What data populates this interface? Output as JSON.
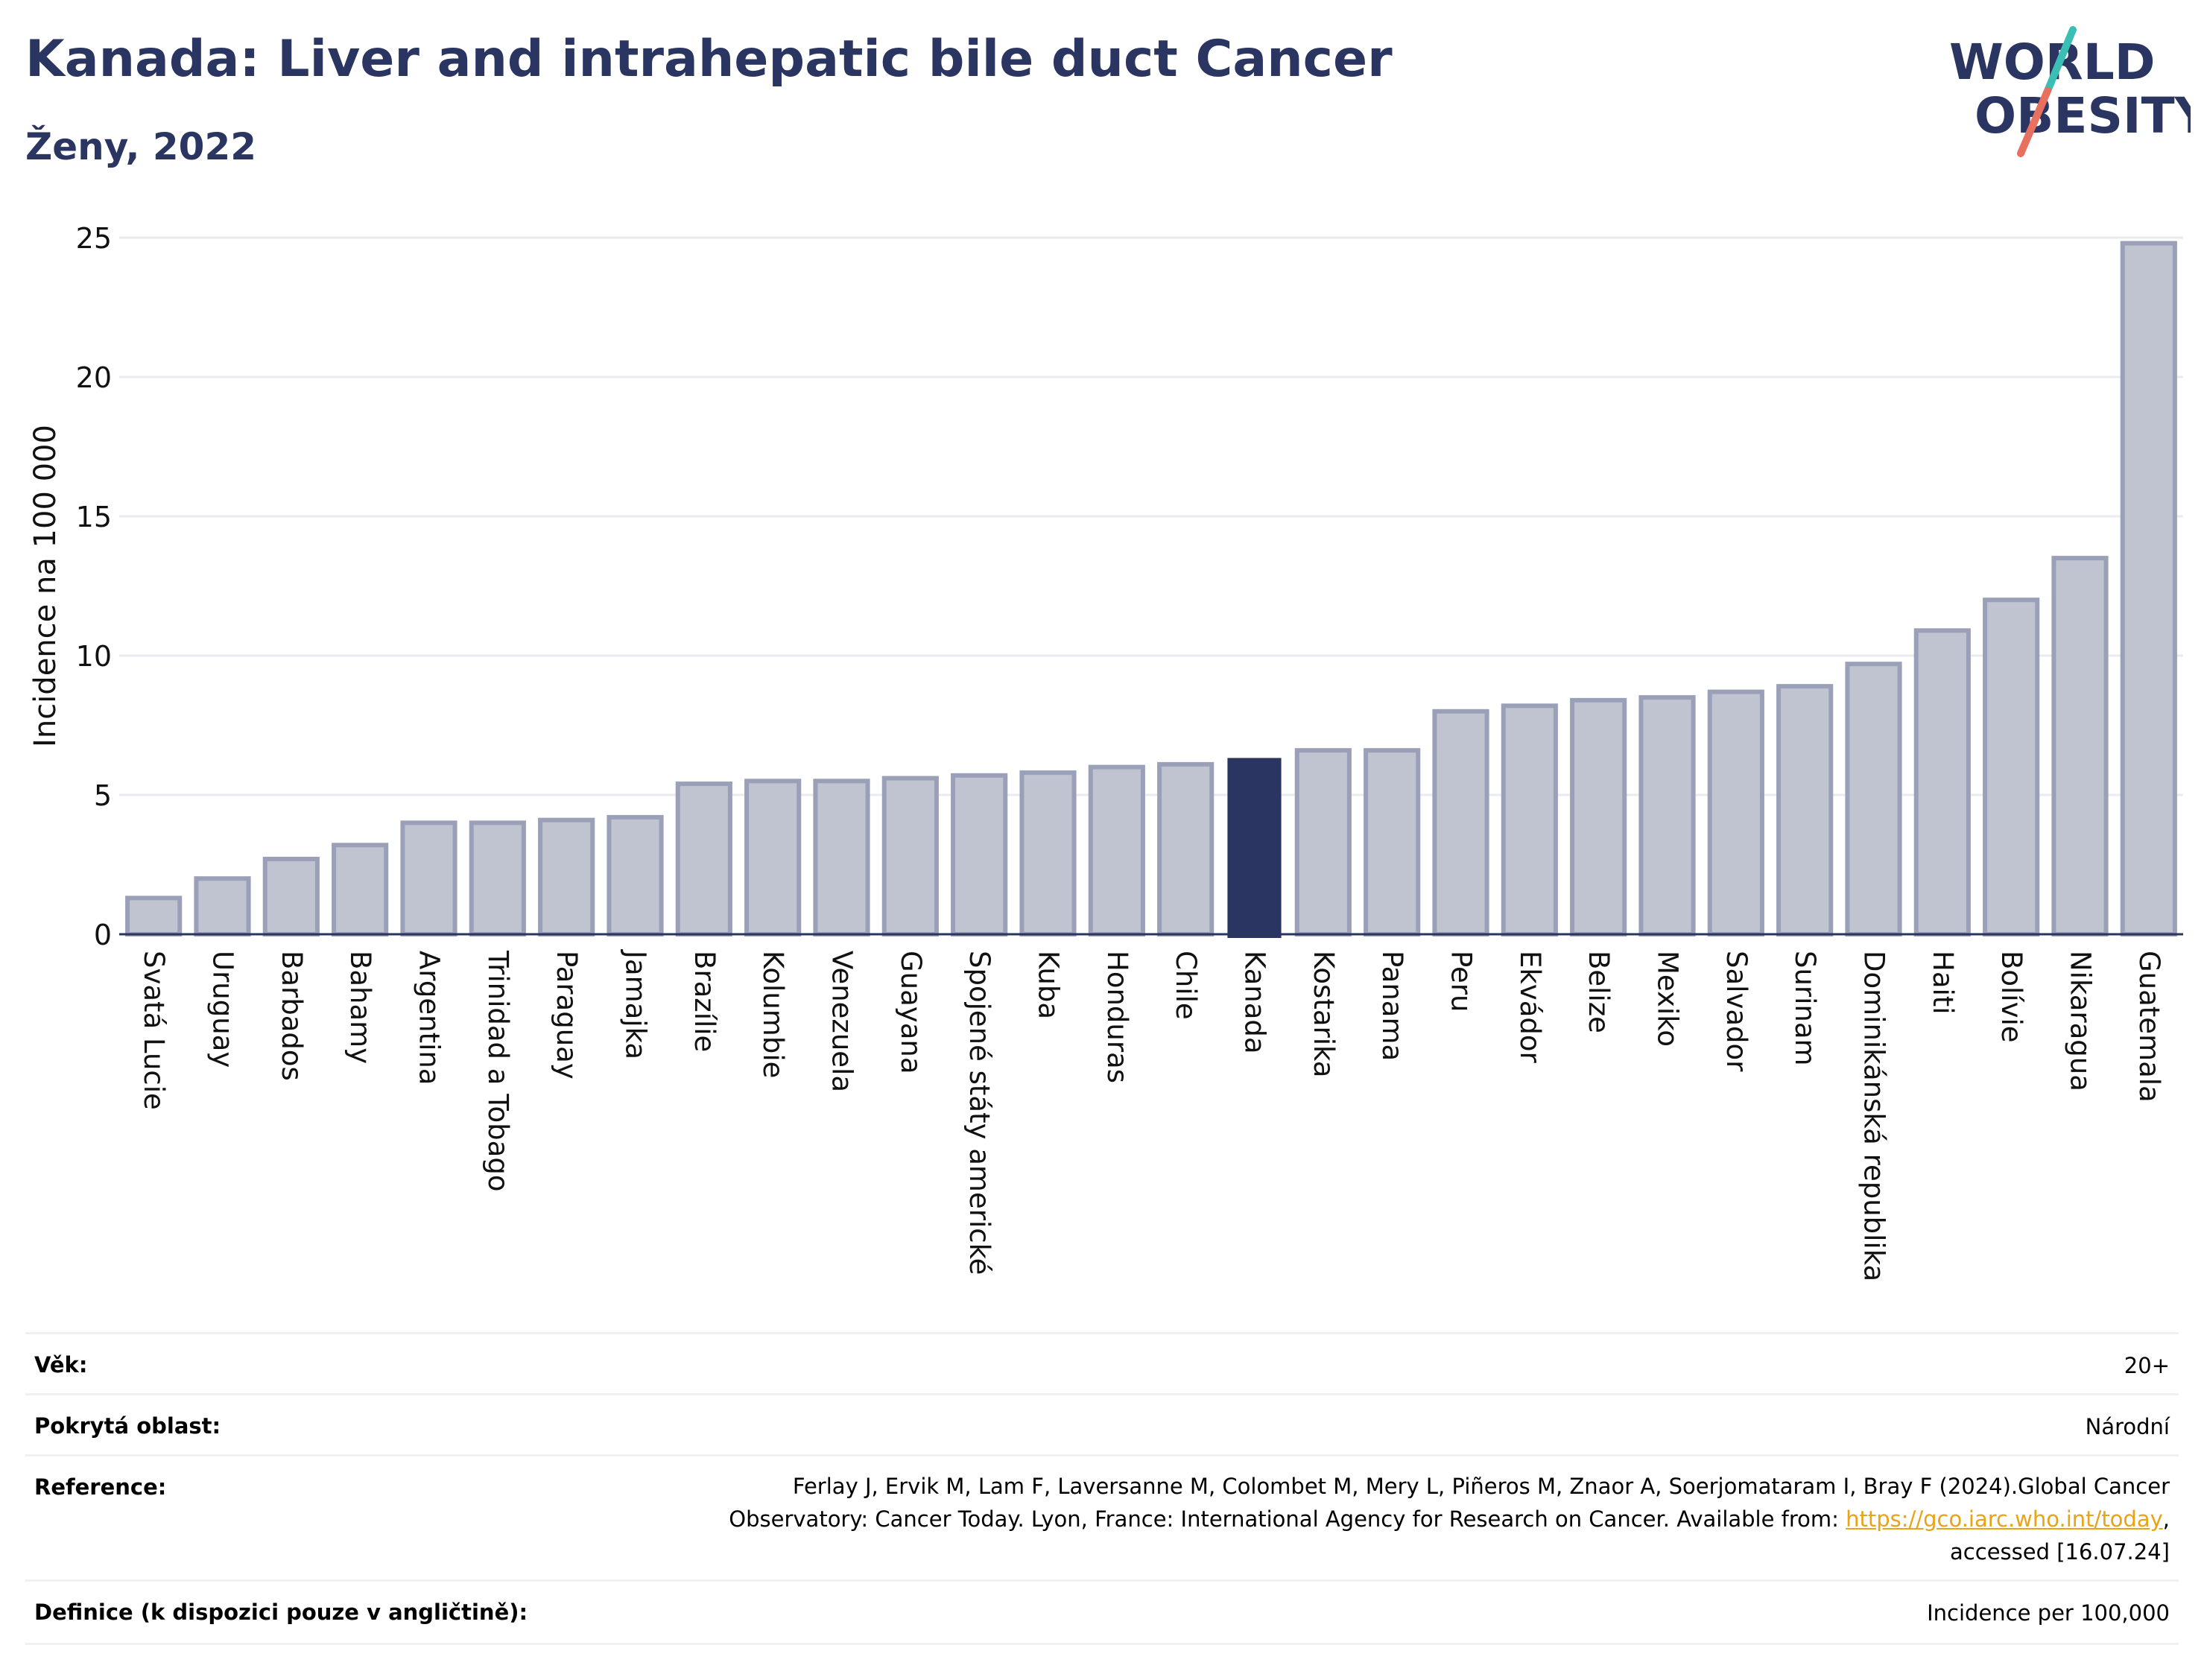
{
  "header": {
    "title": "Kanada: Liver and intrahepatic bile duct Cancer",
    "subtitle": "Ženy, 2022",
    "logo_line1": "WORLD",
    "logo_line2": "OBESITY"
  },
  "colors": {
    "bar": "#c0c4d1",
    "bar_stroke": "#9aa0b8",
    "highlight": "#2a3561",
    "title": "#2a3561",
    "logo_teal": "#3bbfb5",
    "logo_coral": "#e8705f"
  },
  "chart_data": {
    "type": "bar",
    "ylabel": "Incidence na 100 000",
    "ylim": [
      0,
      25
    ],
    "yticks": [
      0,
      5,
      10,
      15,
      20,
      25
    ],
    "grid": true,
    "highlight": "Kanada",
    "categories": [
      "Svatá Lucie",
      "Uruguay",
      "Barbados",
      "Bahamy",
      "Argentina",
      "Trinidad a Tobago",
      "Paraguay",
      "Jamajka",
      "Brazílie",
      "Kolumbie",
      "Venezuela",
      "Guayana",
      "Spojené státy americké",
      "Kuba",
      "Honduras",
      "Chile",
      "Kanada",
      "Kostarika",
      "Panama",
      "Peru",
      "Ekvádor",
      "Belize",
      "Mexiko",
      "Salvador",
      "Surinam",
      "Dominikánská republika",
      "Haiti",
      "Bolívie",
      "Nikaragua",
      "Guatemala"
    ],
    "values": [
      1.3,
      2.0,
      2.7,
      3.2,
      4.0,
      4.0,
      4.1,
      4.2,
      5.4,
      5.5,
      5.5,
      5.6,
      5.7,
      5.8,
      6.0,
      6.1,
      6.3,
      6.6,
      6.6,
      8.0,
      8.2,
      8.4,
      8.5,
      8.7,
      8.9,
      9.7,
      10.9,
      12.0,
      13.5,
      24.8
    ]
  },
  "meta": {
    "age_label": "Věk:",
    "age_value": "20+",
    "area_label": "Pokrytá oblast:",
    "area_value": "Národní",
    "ref_label": "Reference:",
    "ref_line1": "Ferlay J, Ervik M, Lam F, Laversanne M, Colombet M, Mery L, Piñeros M, Znaor A, Soerjomataram I, Bray F (2024).Global Cancer",
    "ref_line2": "Observatory: Cancer Today. Lyon, France: International Agency for Research on Cancer. Available from:",
    "ref_link": "https://gco.iarc.who.int/today",
    "ref_line2_end": ",",
    "ref_line3": "accessed [16.07.24]",
    "def_label": "Definice (k dispozici pouze v angličtině):",
    "def_value": "Incidence per 100,000"
  }
}
